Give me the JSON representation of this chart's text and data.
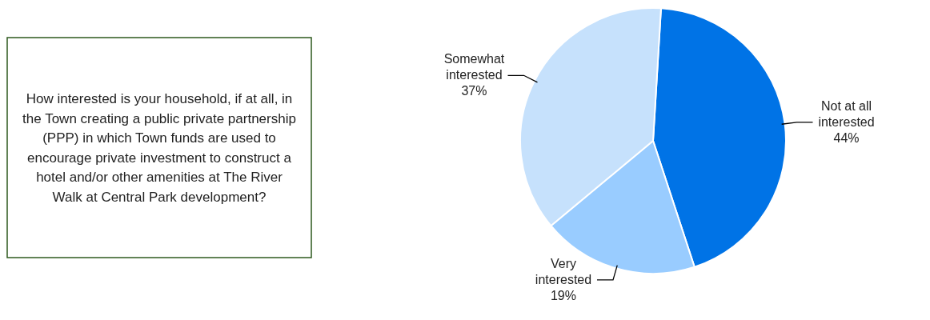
{
  "chart_data": {
    "type": "pie",
    "title": "How interested is your household, if at all, in the Town creating a public private partnership (PPP) in which Town funds are used to encourage private investment to construct a hotel and/or other amenities at The River Walk at Central Park development?",
    "categories": [
      "Not at all interested",
      "Very interested",
      "Somewhat interested"
    ],
    "values": [
      44,
      19,
      37
    ],
    "colors": [
      "#0073e6",
      "#99ccff",
      "#c6e1fc"
    ],
    "value_labels": [
      "44%",
      "19%",
      "37%"
    ]
  }
}
